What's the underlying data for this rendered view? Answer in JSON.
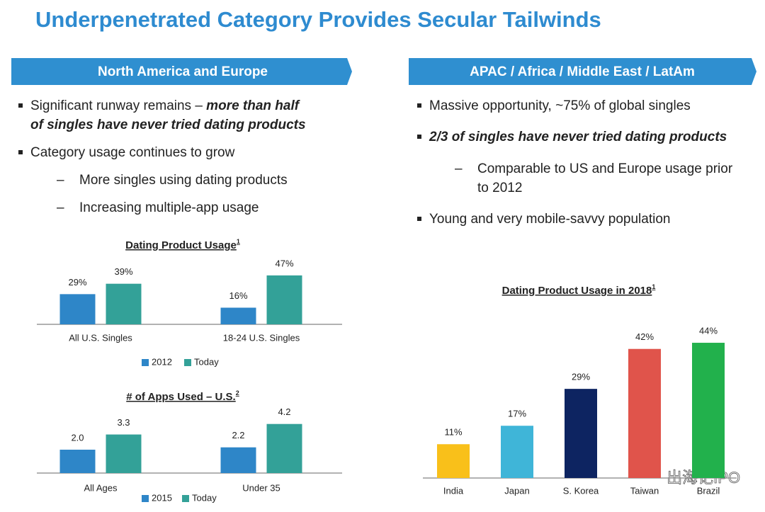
{
  "title": "Underpenetrated Category Provides Secular Tailwinds",
  "left": {
    "header": "North America and Europe",
    "bullets": [
      {
        "text": "Significant runway remains – ",
        "emphasis": "more than half of singles have never tried dating products"
      },
      {
        "text": "Category usage continues to grow"
      }
    ],
    "sub_bullets": [
      "More singles using dating products",
      "Increasing multiple-app usage"
    ]
  },
  "right": {
    "header": "APAC / Africa / Middle East / LatAm",
    "bullets": [
      {
        "text": "Massive opportunity, ~75% of global singles"
      },
      {
        "emphasis": "2/3 of singles have never tried dating products"
      }
    ],
    "sub_bullets": [
      "Comparable to US and Europe usage prior to 2012"
    ],
    "bullets_after": [
      "Young and very mobile-savvy population"
    ]
  },
  "watermark": "出海记IPO",
  "chart_data": [
    {
      "type": "bar",
      "title": "Dating Product Usage",
      "footnote": "1",
      "categories": [
        "All U.S. Singles",
        "18-24 U.S. Singles"
      ],
      "series": [
        {
          "name": "2012",
          "color": "#2e86c8",
          "values": [
            29,
            16
          ],
          "value_labels": [
            "29%",
            "16%"
          ]
        },
        {
          "name": "Today",
          "color": "#33a198",
          "values": [
            39,
            47
          ],
          "value_labels": [
            "39%",
            "47%"
          ]
        }
      ]
    },
    {
      "type": "bar",
      "title": "# of Apps Used – U.S.",
      "footnote": "2",
      "categories": [
        "All Ages",
        "Under 35"
      ],
      "series": [
        {
          "name": "2015",
          "color": "#2e86c8",
          "values": [
            2.0,
            2.2
          ],
          "value_labels": [
            "2.0",
            "2.2"
          ]
        },
        {
          "name": "Today",
          "color": "#33a198",
          "values": [
            3.3,
            4.2
          ]
        }
      ]
    },
    {
      "type": "bar",
      "title": "Dating Product Usage in 2018",
      "footnote": "1",
      "categories": [
        "India",
        "Japan",
        "S. Korea",
        "Taiwan",
        "Brazil"
      ],
      "values": [
        11,
        17,
        29,
        42,
        44
      ],
      "value_labels": [
        "11%",
        "17%",
        "29%",
        "42%",
        "44%"
      ],
      "colors": [
        "#f9c01a",
        "#3fb5d8",
        "#0d2461",
        "#e0544b",
        "#22b14c"
      ]
    }
  ]
}
